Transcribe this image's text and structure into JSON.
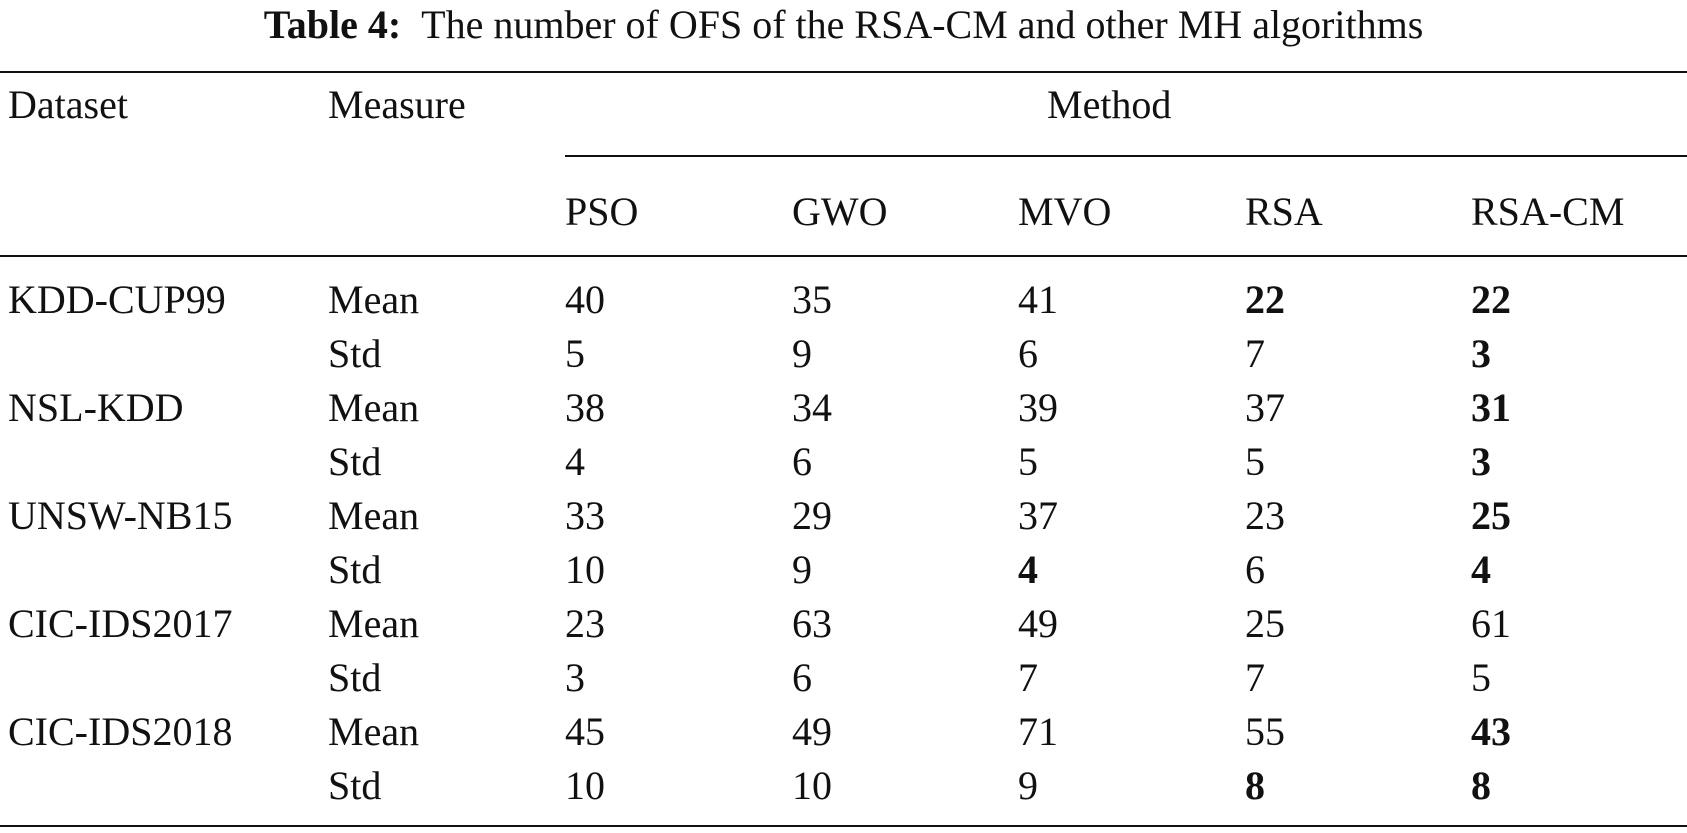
{
  "caption": {
    "label": "Table 4:",
    "text": "The number of OFS of the RSA-CM and other MH algorithms"
  },
  "header": {
    "dataset": "Dataset",
    "measure": "Measure",
    "method": "Method",
    "methods": [
      "PSO",
      "GWO",
      "MVO",
      "RSA",
      "RSA-CM"
    ]
  },
  "rows": [
    {
      "dataset": "KDD-CUP99",
      "measure": "Mean",
      "values": [
        "40",
        "35",
        "41",
        "22",
        "22"
      ],
      "bold": [
        false,
        false,
        false,
        true,
        true
      ]
    },
    {
      "dataset": "",
      "measure": "Std",
      "values": [
        "5",
        "9",
        "6",
        "7",
        "3"
      ],
      "bold": [
        false,
        false,
        false,
        false,
        true
      ]
    },
    {
      "dataset": "NSL-KDD",
      "measure": "Mean",
      "values": [
        "38",
        "34",
        "39",
        "37",
        "31"
      ],
      "bold": [
        false,
        false,
        false,
        false,
        true
      ]
    },
    {
      "dataset": "",
      "measure": "Std",
      "values": [
        "4",
        "6",
        "5",
        "5",
        "3"
      ],
      "bold": [
        false,
        false,
        false,
        false,
        true
      ]
    },
    {
      "dataset": "UNSW-NB15",
      "measure": "Mean",
      "values": [
        "33",
        "29",
        "37",
        "23",
        "25"
      ],
      "bold": [
        false,
        false,
        false,
        false,
        true
      ]
    },
    {
      "dataset": "",
      "measure": "Std",
      "values": [
        "10",
        "9",
        "4",
        "6",
        "4"
      ],
      "bold": [
        false,
        false,
        true,
        false,
        true
      ]
    },
    {
      "dataset": "CIC-IDS2017",
      "measure": "Mean",
      "values": [
        "23",
        "63",
        "49",
        "25",
        "61"
      ],
      "bold": [
        false,
        false,
        false,
        false,
        false
      ]
    },
    {
      "dataset": "",
      "measure": "Std",
      "values": [
        "3",
        "6",
        "7",
        "7",
        "5"
      ],
      "bold": [
        false,
        false,
        false,
        false,
        false
      ]
    },
    {
      "dataset": "CIC-IDS2018",
      "measure": "Mean",
      "values": [
        "45",
        "49",
        "71",
        "55",
        "43"
      ],
      "bold": [
        false,
        false,
        false,
        false,
        true
      ]
    },
    {
      "dataset": "",
      "measure": "Std",
      "values": [
        "10",
        "10",
        "9",
        "8",
        "8"
      ],
      "bold": [
        false,
        false,
        false,
        true,
        true
      ]
    }
  ]
}
